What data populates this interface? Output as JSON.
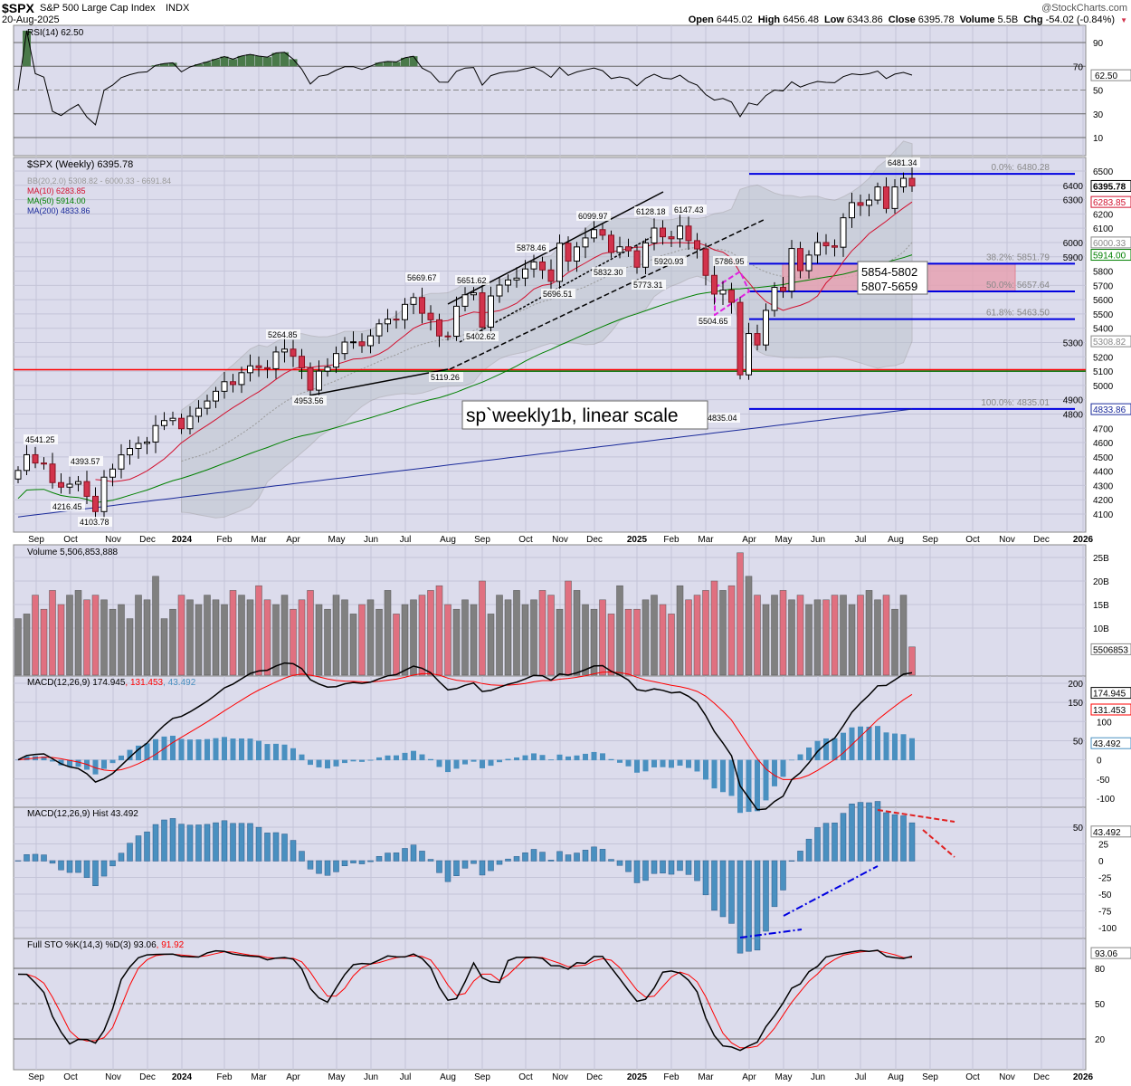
{
  "header": {
    "symbol": "$SPX",
    "name": "S&P 500 Large Cap Index",
    "exchange": "INDX",
    "date": "20-Aug-2025",
    "brand": "@StockCharts.com",
    "ohlc": [
      [
        "Open",
        "6445.02"
      ],
      [
        "High",
        "6456.48"
      ],
      [
        "Low",
        "6343.86"
      ],
      [
        "Close",
        "6395.78"
      ],
      [
        "Volume",
        "5.5B"
      ],
      [
        "Chg",
        "-54.02 (-0.84%)"
      ]
    ]
  },
  "colors": {
    "panel": "#dcdcec",
    "up": "#ffffff",
    "down": "#d2334c",
    "ma10": "#d2102e",
    "ma50": "#008000",
    "ma200": "#1a2a9a",
    "macdHist": "#4a90c0",
    "fib": "#0000e0",
    "redline": "#ff0000",
    "pink": "#e8a0b0"
  },
  "chart_data": {
    "type": "candlestick",
    "title": "$SPX (Weekly) 6395.78",
    "start_week": "2023-08-25",
    "closes": [
      4405,
      4515,
      4457,
      4450,
      4320,
      4288,
      4309,
      4327,
      4224,
      4117,
      4358,
      4415,
      4514,
      4559,
      4594,
      4604,
      4719,
      4754,
      4770,
      4697,
      4784,
      4840,
      4891,
      4959,
      5026,
      5006,
      5089,
      5137,
      5124,
      5117,
      5234,
      5254,
      5204,
      5123,
      4967,
      5100,
      5128,
      5223,
      5303,
      5305,
      5278,
      5347,
      5431,
      5464,
      5460,
      5567,
      5615,
      5505,
      5459,
      5346,
      5344,
      5554,
      5634,
      5648,
      5408,
      5626,
      5702,
      5738,
      5751,
      5815,
      5864,
      5808,
      5728,
      5995,
      5870,
      5969,
      6032,
      6090,
      6051,
      5930,
      5970,
      5942,
      5827,
      5997,
      6101,
      6040,
      6026,
      6115,
      6013,
      5955,
      5770,
      5639,
      5667,
      5581,
      5074,
      5363,
      5283,
      5525,
      5686,
      5660,
      5958,
      5803,
      5912,
      6000,
      5977,
      5967,
      6173,
      6279,
      6260,
      6297,
      6389,
      6238,
      6389,
      6449,
      6396
    ],
    "volume_billions": [
      12,
      13,
      17,
      14,
      18,
      15,
      17,
      18,
      16,
      17,
      16,
      14,
      15,
      12,
      17,
      16,
      21,
      12,
      14,
      17,
      16,
      15,
      17,
      16,
      15,
      18,
      17,
      16,
      19,
      16,
      15,
      17,
      14,
      16,
      18,
      15,
      14,
      17,
      16,
      13,
      15,
      16,
      14,
      18,
      13,
      15,
      16,
      17,
      18,
      19,
      15,
      14,
      16,
      15,
      20,
      13,
      17,
      16,
      18,
      15,
      16,
      18,
      17,
      14,
      20,
      18,
      15,
      14,
      16,
      13,
      19,
      14,
      14,
      16,
      17,
      15,
      13,
      19,
      16,
      17,
      18,
      20,
      18,
      19,
      26,
      21,
      17,
      15,
      17,
      18,
      16,
      17,
      15,
      16,
      16,
      17,
      17,
      15,
      17,
      18,
      16,
      17,
      14,
      17,
      6
    ],
    "ma200": {
      "start": 4080,
      "end": 4833.86
    },
    "x_ticks": [
      "Sep",
      "Oct",
      "Nov",
      "Dec",
      "2024",
      "Feb",
      "Mar",
      "Apr",
      "May",
      "Jun",
      "Jul",
      "Aug",
      "Sep",
      "Oct",
      "Nov",
      "Dec",
      "2025",
      "Feb",
      "Mar",
      "Apr",
      "May",
      "Jun",
      "Jul",
      "Aug",
      "Sep",
      "Oct",
      "Nov",
      "Dec",
      "2026"
    ],
    "price_ticks": [
      4100,
      4200,
      4300,
      4400,
      4500,
      4600,
      4700,
      4800,
      4900,
      5000,
      5100,
      5200,
      5300,
      5400,
      5500,
      5600,
      5700,
      5800,
      5900,
      6000,
      6100,
      6200,
      6300,
      6400,
      6500
    ],
    "price_range": [
      4000,
      6600
    ],
    "fib_levels": [
      {
        "label": "0.0%: 6480.28",
        "value": 6480.28
      },
      {
        "label": "38.2%: 5851.79",
        "value": 5851.79
      },
      {
        "label": "50.0%: 5657.64",
        "value": 5657.64
      },
      {
        "label": "61.8%: 5463.50",
        "value": 5463.5
      },
      {
        "label": "100.0%: 4835.01",
        "value": 4835.01
      }
    ],
    "support_line": 5110,
    "green_line": 5100,
    "zone": {
      "top": 5854,
      "bottom": 5659,
      "text1": "5854-5802",
      "text2": "5807-5659"
    },
    "annotation": "sp`weekly1b, linear scale",
    "swing_labels": [
      "4541.25",
      "4393.57",
      "4216.45",
      "4103.78",
      "5264.85",
      "4953.56",
      "5669.67",
      "5651.62",
      "5119.26",
      "5402.62",
      "5878.46",
      "5696.51",
      "6099.97",
      "5832.30",
      "6128.18",
      "6147.43",
      "5920.93",
      "5773.31",
      "5786.95",
      "5504.65",
      "4835.04",
      "6481.34"
    ],
    "price_boxes": [
      {
        "text": "6395.78",
        "value": 6395.78,
        "color": "#000000"
      },
      {
        "text": "6283.85",
        "value": 6283.85,
        "color": "#d2102e"
      },
      {
        "text": "6000.33",
        "value": 6000.33,
        "color": "#888888"
      },
      {
        "text": "5914.00",
        "value": 5914,
        "color": "#008000"
      },
      {
        "text": "5308.82",
        "value": 5308.82,
        "color": "#888888"
      },
      {
        "text": "4833.86",
        "value": 4833.86,
        "color": "#1a2a9a"
      }
    ],
    "legend": {
      "main": "$SPX (Weekly) 6395.78",
      "bb": "BB(20,2.0) 5308.82 - 6000.33 - 6691.84",
      "ma10": "MA(10) 6283.85",
      "ma50": "MA(50) 5914.00",
      "ma200": "MA(200) 4833.86"
    },
    "rsi": {
      "label": "RSI(14) 62.50",
      "ticks": [
        "90",
        "70",
        "50",
        "30",
        "10"
      ],
      "value": "62.50"
    },
    "volume": {
      "label": "Volume 5,506,853,888",
      "ticks": [
        "25B",
        "20B",
        "15B",
        "10B"
      ],
      "value": "5506853"
    },
    "macd": {
      "label": "MACD(12,26,9) 174.945",
      "signal": ", 131.453",
      "hist": ", 43.492",
      "ticks": [
        "200",
        "150",
        "100",
        "50",
        "0",
        "-50",
        "-100"
      ],
      "boxes": [
        "174.945",
        "131.453",
        "43.492"
      ]
    },
    "macd_hist": {
      "label": "MACD(12,26,9) Hist 43.492",
      "ticks": [
        "50",
        "25",
        "0",
        "-25",
        "-50",
        "-75",
        "-100"
      ],
      "value": "43.492"
    },
    "sto": {
      "label": "Full STO %K(14,3) %D(3) 93.06",
      "d": ", 91.92",
      "ticks": [
        "80",
        "50",
        "20"
      ],
      "value": "93.06"
    }
  }
}
